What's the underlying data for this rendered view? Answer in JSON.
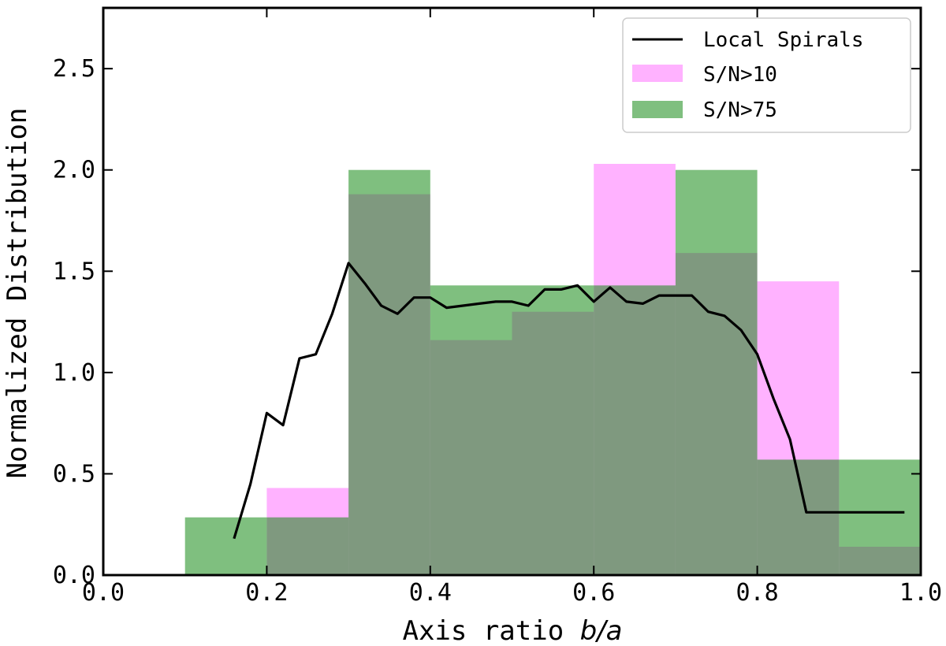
{
  "chart_data": {
    "type": "bar",
    "xlabel_text": "Axis ratio ",
    "xlabel_math": "b/a",
    "ylabel": "Normalized Distribution",
    "xlim": [
      0.0,
      1.0
    ],
    "ylim": [
      0.0,
      2.8
    ],
    "x_ticks": [
      0.0,
      0.2,
      0.4,
      0.6,
      0.8,
      1.0
    ],
    "x_tick_labels": [
      "0.0",
      "0.2",
      "0.4",
      "0.6",
      "0.8",
      "1.0"
    ],
    "y_ticks": [
      0.0,
      0.5,
      1.0,
      1.5,
      2.0,
      2.5
    ],
    "y_tick_labels": [
      "0.0",
      "0.5",
      "1.0",
      "1.5",
      "2.0",
      "2.5"
    ],
    "bin_edges": [
      0.0,
      0.1,
      0.2,
      0.3,
      0.4,
      0.5,
      0.6,
      0.7,
      0.8,
      0.9,
      1.0
    ],
    "legend_position": "top-right",
    "series": [
      {
        "name": "S/N>10",
        "kind": "histogram",
        "color": "#ff66ff",
        "values": [
          0.0,
          0.0,
          0.43,
          1.88,
          1.16,
          1.3,
          2.03,
          1.59,
          1.45,
          0.14
        ]
      },
      {
        "name": "S/N>75",
        "kind": "histogram",
        "color": "#008000",
        "values": [
          0.0,
          0.285,
          0.285,
          2.0,
          1.43,
          1.43,
          1.43,
          2.0,
          0.57,
          0.57
        ]
      },
      {
        "name": "Local Spirals",
        "kind": "line",
        "color": "#000000",
        "x": [
          0.16,
          0.18,
          0.2,
          0.22,
          0.24,
          0.26,
          0.28,
          0.3,
          0.32,
          0.34,
          0.36,
          0.38,
          0.4,
          0.42,
          0.44,
          0.46,
          0.48,
          0.5,
          0.52,
          0.54,
          0.56,
          0.58,
          0.6,
          0.62,
          0.64,
          0.66,
          0.68,
          0.7,
          0.72,
          0.74,
          0.76,
          0.78,
          0.8,
          0.82,
          0.84,
          0.86,
          0.88,
          0.9,
          0.92,
          0.94,
          0.96,
          0.98
        ],
        "y": [
          0.18,
          0.45,
          0.8,
          0.74,
          1.07,
          1.09,
          1.29,
          1.54,
          1.44,
          1.33,
          1.29,
          1.37,
          1.37,
          1.32,
          1.33,
          1.34,
          1.35,
          1.35,
          1.33,
          1.41,
          1.41,
          1.43,
          1.35,
          1.42,
          1.35,
          1.34,
          1.38,
          1.38,
          1.38,
          1.3,
          1.28,
          1.21,
          1.09,
          0.87,
          0.67,
          0.31,
          0.31,
          0.31,
          0.31,
          0.31,
          0.31,
          0.31
        ]
      }
    ]
  }
}
